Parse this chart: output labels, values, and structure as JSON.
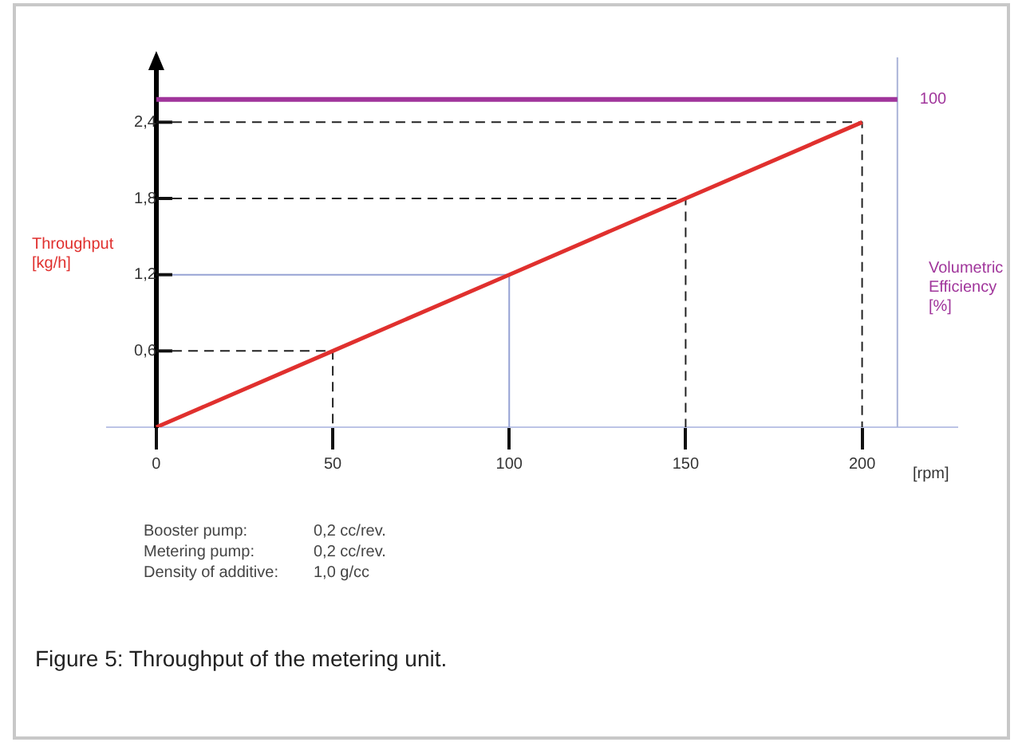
{
  "chart_data": {
    "type": "line",
    "xlabel": "[rpm]",
    "ylabel": "Throughput\n[kg/h]",
    "y2label": "Volumetric\nEfficiency\n[%]",
    "xlim": [
      -14,
      227
    ],
    "xticks": [
      0,
      50,
      100,
      150,
      200
    ],
    "ylim": [
      0,
      2.86
    ],
    "yticks": [
      {
        "value": 0.6,
        "label": "0,6"
      },
      {
        "value": 1.2,
        "label": "1,2"
      },
      {
        "value": 1.8,
        "label": "1,8"
      },
      {
        "value": 2.4,
        "label": "2,4"
      }
    ],
    "series": [
      {
        "color": "#222222",
        "line_style": "dashed",
        "x": [
          0,
          50,
          50
        ],
        "values": [
          0.6,
          0.6,
          0
        ]
      },
      {
        "color": "#96a2d4",
        "line_style": "solid",
        "x": [
          0,
          100,
          100
        ],
        "values": [
          1.2,
          1.2,
          0
        ]
      },
      {
        "color": "#222222",
        "line_style": "dashed",
        "x": [
          0,
          150,
          150
        ],
        "values": [
          1.8,
          1.8,
          0
        ]
      },
      {
        "color": "#222222",
        "line_style": "dashed",
        "x": [
          0,
          200,
          200
        ],
        "values": [
          2.4,
          2.4,
          0
        ]
      },
      {
        "color": "#e0302e",
        "x": [
          0,
          50,
          100,
          150,
          200
        ],
        "values": [
          0,
          0.6,
          1.2,
          1.8,
          2.4
        ]
      }
    ],
    "ref_lines": [
      {
        "axis": "x",
        "value": 210,
        "color": "#aab4d8"
      },
      {
        "axis": "y",
        "value": 2.58,
        "color": "#a0359b"
      }
    ],
    "annotations": [
      {
        "text": "100",
        "x": 210,
        "y": 2.58
      },
      "Booster pump:\t0,2 cc/rev.",
      "Metering pump:\t0,2 cc/rev.",
      "Density of additive:\t1,0 g/cc",
      "Figure 5: Throughput of the metering unit."
    ],
    "grid": false,
    "legend": false,
    "marker": "none",
    "line_style": "solid"
  }
}
